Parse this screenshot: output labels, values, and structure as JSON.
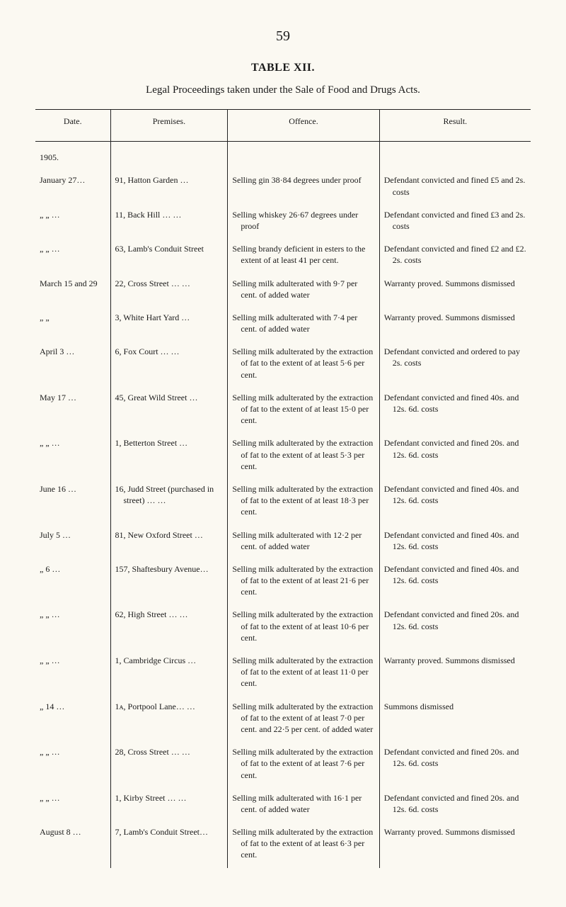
{
  "page_number": "59",
  "table_title": "TABLE XII.",
  "subtitle": "Legal Proceedings taken under the Sale of Food and Drugs Acts.",
  "columns": [
    "Date.",
    "Premises.",
    "Offence.",
    "Result."
  ],
  "year_label": "1905.",
  "rows": [
    {
      "date": "January 27…",
      "premises": "91, Hatton Garden   …",
      "offence": "Selling gin 38·84 degrees under proof",
      "result": "Defendant convicted and fined £5 and 2s. costs"
    },
    {
      "date": "„   „ …",
      "premises": "11, Back Hill   …   …",
      "offence": "Selling whiskey 26·67 degrees under proof",
      "result": "Defendant convicted and fined £3 and 2s. costs"
    },
    {
      "date": "„   „ …",
      "premises": "63, Lamb's Conduit Street",
      "offence": "Selling brandy deficient in esters to the extent of at least 41 per cent.",
      "result": "Defendant convicted and fined £2 and £2. 2s. costs"
    },
    {
      "date": "March 15 and 29",
      "premises": "22, Cross Street …   …",
      "offence": "Selling milk adulterated with 9·7 per cent. of added water",
      "result": "Warranty proved. Summons dismissed"
    },
    {
      "date": "„    „",
      "premises": "3, White Hart Yard   …",
      "offence": "Selling milk adulterated with 7·4 per cent. of added water",
      "result": "Warranty proved. Summons dismissed"
    },
    {
      "date": "April 3   …",
      "premises": "6, Fox Court   …   …",
      "offence": "Selling milk adulterated by the extraction of fat to the extent of at least 5·6 per cent.",
      "result": "Defendant convicted and ordered to pay 2s. costs"
    },
    {
      "date": "May 17   …",
      "premises": "45, Great Wild Street   …",
      "offence": "Selling milk adulterated by the extraction of fat to the extent of at least 15·0 per cent.",
      "result": "Defendant convicted and fined 40s. and 12s. 6d. costs"
    },
    {
      "date": "„  „   …",
      "premises": "1, Betterton Street   …",
      "offence": "Selling milk adulterated by the extraction of fat to the extent of at least 5·3 per cent.",
      "result": "Defendant convicted and fined 20s. and 12s. 6d. costs"
    },
    {
      "date": "June 16   …",
      "premises": "16, Judd Street (purchased in street)   …   …",
      "offence": "Selling milk adulterated by the extraction of fat to the extent of at least 18·3 per cent.",
      "result": "Defendant convicted and fined 40s. and 12s. 6d. costs"
    },
    {
      "date": "July 5   …",
      "premises": "81, New Oxford Street …",
      "offence": "Selling milk adulterated with 12·2 per cent. of added water",
      "result": "Defendant convicted and fined 40s. and 12s. 6d. costs"
    },
    {
      "date": "„  6   …",
      "premises": "157, Shaftesbury Avenue…",
      "offence": "Selling milk adulterated by the extraction of fat to the extent of at least 21·6 per cent.",
      "result": "Defendant convicted and fined 40s. and 12s. 6d. costs"
    },
    {
      "date": "„  „   …",
      "premises": "62, High Street …   …",
      "offence": "Selling milk adulterated by the extraction of fat to the extent of at least 10·6 per cent.",
      "result": "Defendant convicted and fined 20s. and 12s. 6d. costs"
    },
    {
      "date": "„  „   …",
      "premises": "1, Cambridge Circus   …",
      "offence": "Selling milk adulterated by the extraction of fat to the extent of at least 11·0 per cent.",
      "result": "Warranty proved. Summons dismissed"
    },
    {
      "date": "„  14   …",
      "premises": "1ᴀ, Portpool Lane…   …",
      "offence": "Selling milk adulterated by the extraction of fat to the extent of at least 7·0 per cent. and 22·5 per cent. of added water",
      "result": "Summons dismissed"
    },
    {
      "date": "„  „   …",
      "premises": "28, Cross Street …   …",
      "offence": "Selling milk adulterated by the extraction of fat to the extent of at least 7·6 per cent.",
      "result": "Defendant convicted and fined 20s. and 12s. 6d. costs"
    },
    {
      "date": "„  „   …",
      "premises": "1, Kirby Street   …   …",
      "offence": "Selling milk adulterated with 16·1 per cent. of added water",
      "result": "Defendant convicted and fined 20s. and 12s. 6d. costs"
    },
    {
      "date": "August 8 …",
      "premises": "7, Lamb's Conduit Street…",
      "offence": "Selling milk adulterated by the extraction of fat to the extent of at least 6·3 per cent.",
      "result": "Warranty proved. Summons dismissed"
    }
  ]
}
